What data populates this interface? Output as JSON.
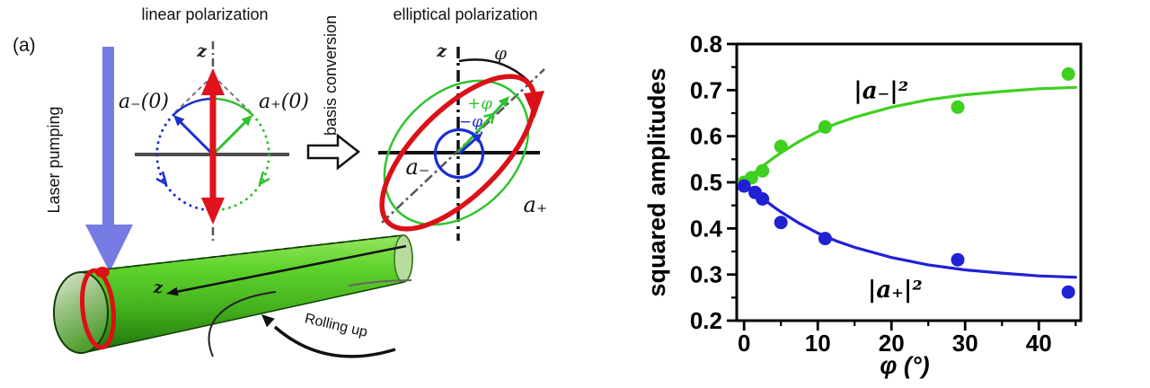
{
  "panel_label": "(a)",
  "diagram": {
    "title_linear": "linear polarization",
    "title_elliptical": "elliptical polarization",
    "laser_pumping": "Laser pumping",
    "basis_conversion": "basis conversion",
    "rolling_up": "Rolling up",
    "z_linear": "z",
    "z_elliptical": "z",
    "z_tube": "z",
    "a_minus_0": "a₋(0)",
    "a_plus_0": "a₊(0)",
    "a_minus": "a₋",
    "a_plus": "a₊",
    "phi": "φ",
    "plus_phi": "+φ",
    "minus_phi": "−φ",
    "colors": {
      "laser_arrow": "#767be4",
      "red": "#e0121b",
      "blue": "#1b2fd0",
      "green": "#2fc32f",
      "axis_gray": "#4d4d4d",
      "tube_green": "#52c322"
    }
  },
  "chart_data": {
    "type": "scatter",
    "title": "",
    "xlabel": "φ (°)",
    "ylabel": "squared amplitudes",
    "xlim": [
      -1,
      45.7
    ],
    "ylim": [
      0.2,
      0.8
    ],
    "grid": false,
    "legend_position": "none",
    "x_ticks": [
      {
        "v": 0,
        "label": "0"
      },
      {
        "v": 10,
        "label": "10"
      },
      {
        "v": 20,
        "label": "20"
      },
      {
        "v": 30,
        "label": "30"
      },
      {
        "v": 40,
        "label": "40"
      }
    ],
    "x_minor": [
      5,
      15,
      25,
      35,
      45
    ],
    "y_ticks": [
      {
        "v": 0.2,
        "label": "0.2"
      },
      {
        "v": 0.3,
        "label": "0.3"
      },
      {
        "v": 0.4,
        "label": "0.4"
      },
      {
        "v": 0.5,
        "label": "0.5"
      },
      {
        "v": 0.6,
        "label": "0.6"
      },
      {
        "v": 0.7,
        "label": "0.7"
      },
      {
        "v": 0.8,
        "label": "0.8"
      }
    ],
    "y_minor": [
      0.25,
      0.35,
      0.45,
      0.55,
      0.65,
      0.75
    ],
    "fit_x": [
      0,
      1,
      2,
      3,
      4,
      5,
      7.5,
      10,
      12.5,
      15,
      20,
      25,
      30,
      35,
      40,
      45
    ],
    "series": [
      {
        "name": "|a₋|²",
        "color": "#3ed01e",
        "marker": "circle",
        "points": [
          [
            0,
            0.5
          ],
          [
            1,
            0.51
          ],
          [
            2.5,
            0.525
          ],
          [
            5,
            0.578
          ],
          [
            11,
            0.62
          ],
          [
            29,
            0.663
          ],
          [
            44,
            0.735
          ]
        ],
        "fit": [
          0.5,
          0.515,
          0.529,
          0.541,
          0.553,
          0.564,
          0.589,
          0.61,
          0.627,
          0.641,
          0.663,
          0.679,
          0.69,
          0.697,
          0.703,
          0.706
        ],
        "label_pos": [
          18.6,
          0.7
        ]
      },
      {
        "name": "|a₊|²",
        "color": "#2121d4",
        "marker": "circle",
        "points": [
          [
            0,
            0.492
          ],
          [
            1.5,
            0.478
          ],
          [
            2.5,
            0.464
          ],
          [
            5,
            0.413
          ],
          [
            11,
            0.378
          ],
          [
            29,
            0.332
          ],
          [
            44,
            0.262
          ]
        ],
        "fit": [
          0.5,
          0.485,
          0.471,
          0.459,
          0.447,
          0.436,
          0.411,
          0.39,
          0.373,
          0.359,
          0.337,
          0.321,
          0.31,
          0.303,
          0.297,
          0.294
        ],
        "label_pos": [
          20.5,
          0.268
        ]
      }
    ]
  }
}
